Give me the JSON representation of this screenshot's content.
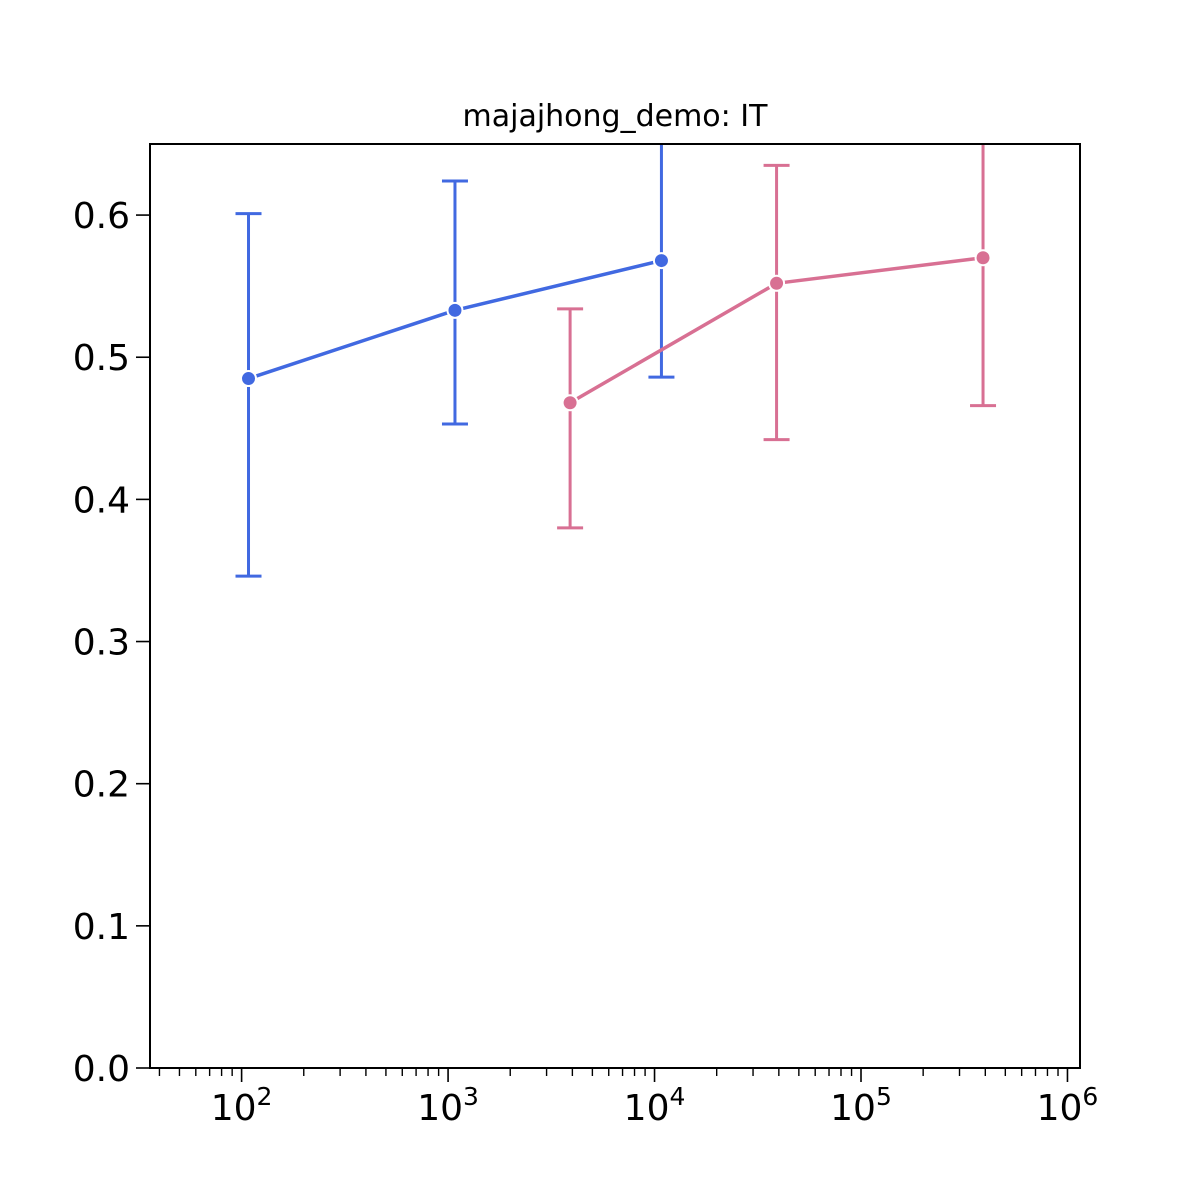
{
  "chart_data": {
    "type": "line",
    "title": "majajhong_demo: IT",
    "xlabel": "",
    "ylabel": "",
    "xscale": "log",
    "xlim": [
      36,
      1150000
    ],
    "ylim": [
      0.0,
      0.65
    ],
    "x_ticks": [
      {
        "value": 100,
        "base": "10",
        "exp": "2"
      },
      {
        "value": 1000,
        "base": "10",
        "exp": "3"
      },
      {
        "value": 10000,
        "base": "10",
        "exp": "4"
      },
      {
        "value": 100000,
        "base": "10",
        "exp": "5"
      },
      {
        "value": 1000000,
        "base": "10",
        "exp": "6"
      }
    ],
    "y_ticks": [
      "0.0",
      "0.1",
      "0.2",
      "0.3",
      "0.4",
      "0.5",
      "0.6"
    ],
    "grid": false,
    "legend": "none",
    "series": [
      {
        "color": "#4169e1",
        "points": [
          {
            "x": 108,
            "y": 0.485,
            "err_low": 0.346,
            "err_high": 0.601
          },
          {
            "x": 1080,
            "y": 0.533,
            "err_low": 0.453,
            "err_high": 0.624
          },
          {
            "x": 10800,
            "y": 0.568,
            "err_low": 0.486,
            "err_high": 0.66
          }
        ]
      },
      {
        "color": "#d87093",
        "points": [
          {
            "x": 3900,
            "y": 0.468,
            "err_low": 0.38,
            "err_high": 0.534
          },
          {
            "x": 39000,
            "y": 0.552,
            "err_low": 0.442,
            "err_high": 0.635
          },
          {
            "x": 390000,
            "y": 0.57,
            "err_low": 0.466,
            "err_high": 0.66
          }
        ]
      }
    ]
  }
}
